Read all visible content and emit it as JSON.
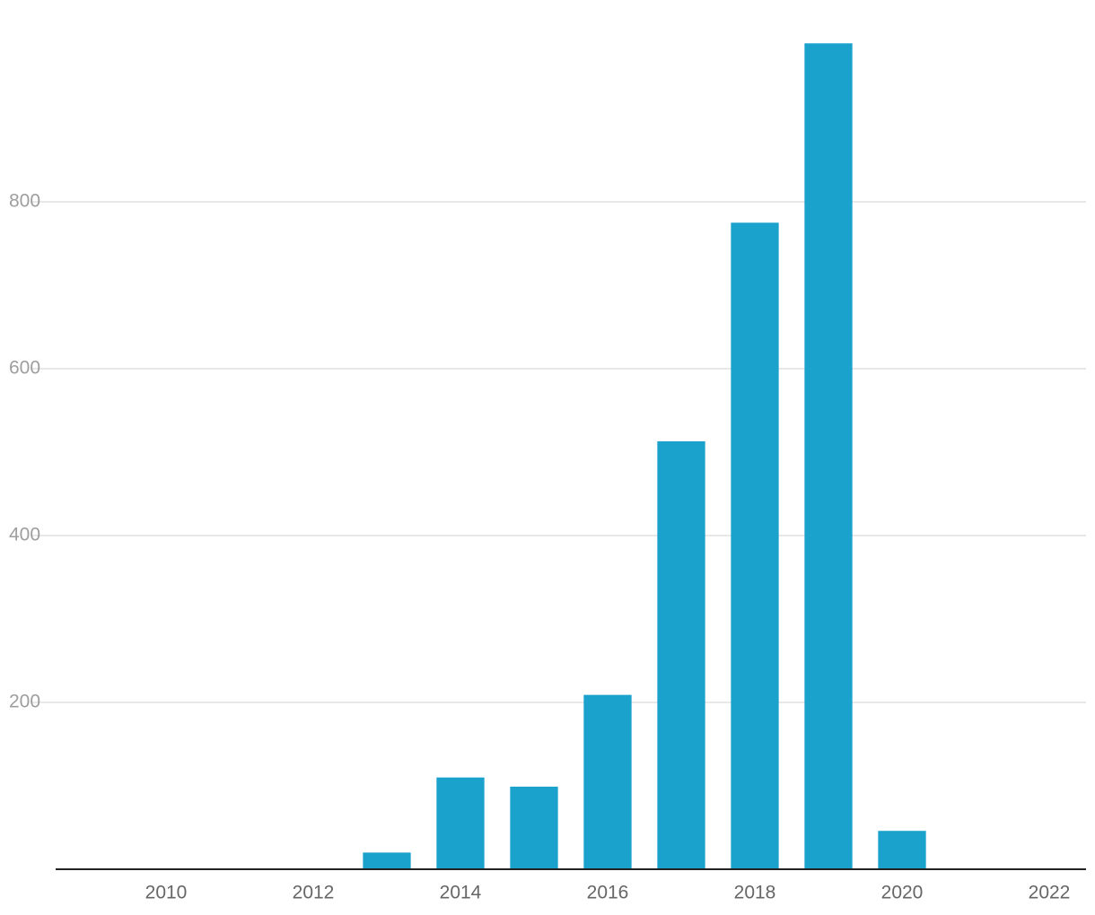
{
  "chart_data": {
    "type": "bar",
    "x": [
      2013,
      2014,
      2015,
      2016,
      2017,
      2018,
      2019,
      2020
    ],
    "values": [
      20,
      110,
      99,
      209,
      513,
      775,
      990,
      46
    ],
    "color": "#1aa1cc",
    "xlim": [
      2008.5,
      2022.5
    ],
    "xticks": [
      2010,
      2012,
      2014,
      2016,
      2018,
      2020,
      2022
    ],
    "ylim": [
      0,
      1000
    ],
    "yticks": [
      200,
      400,
      600,
      800
    ],
    "grid": true
  }
}
